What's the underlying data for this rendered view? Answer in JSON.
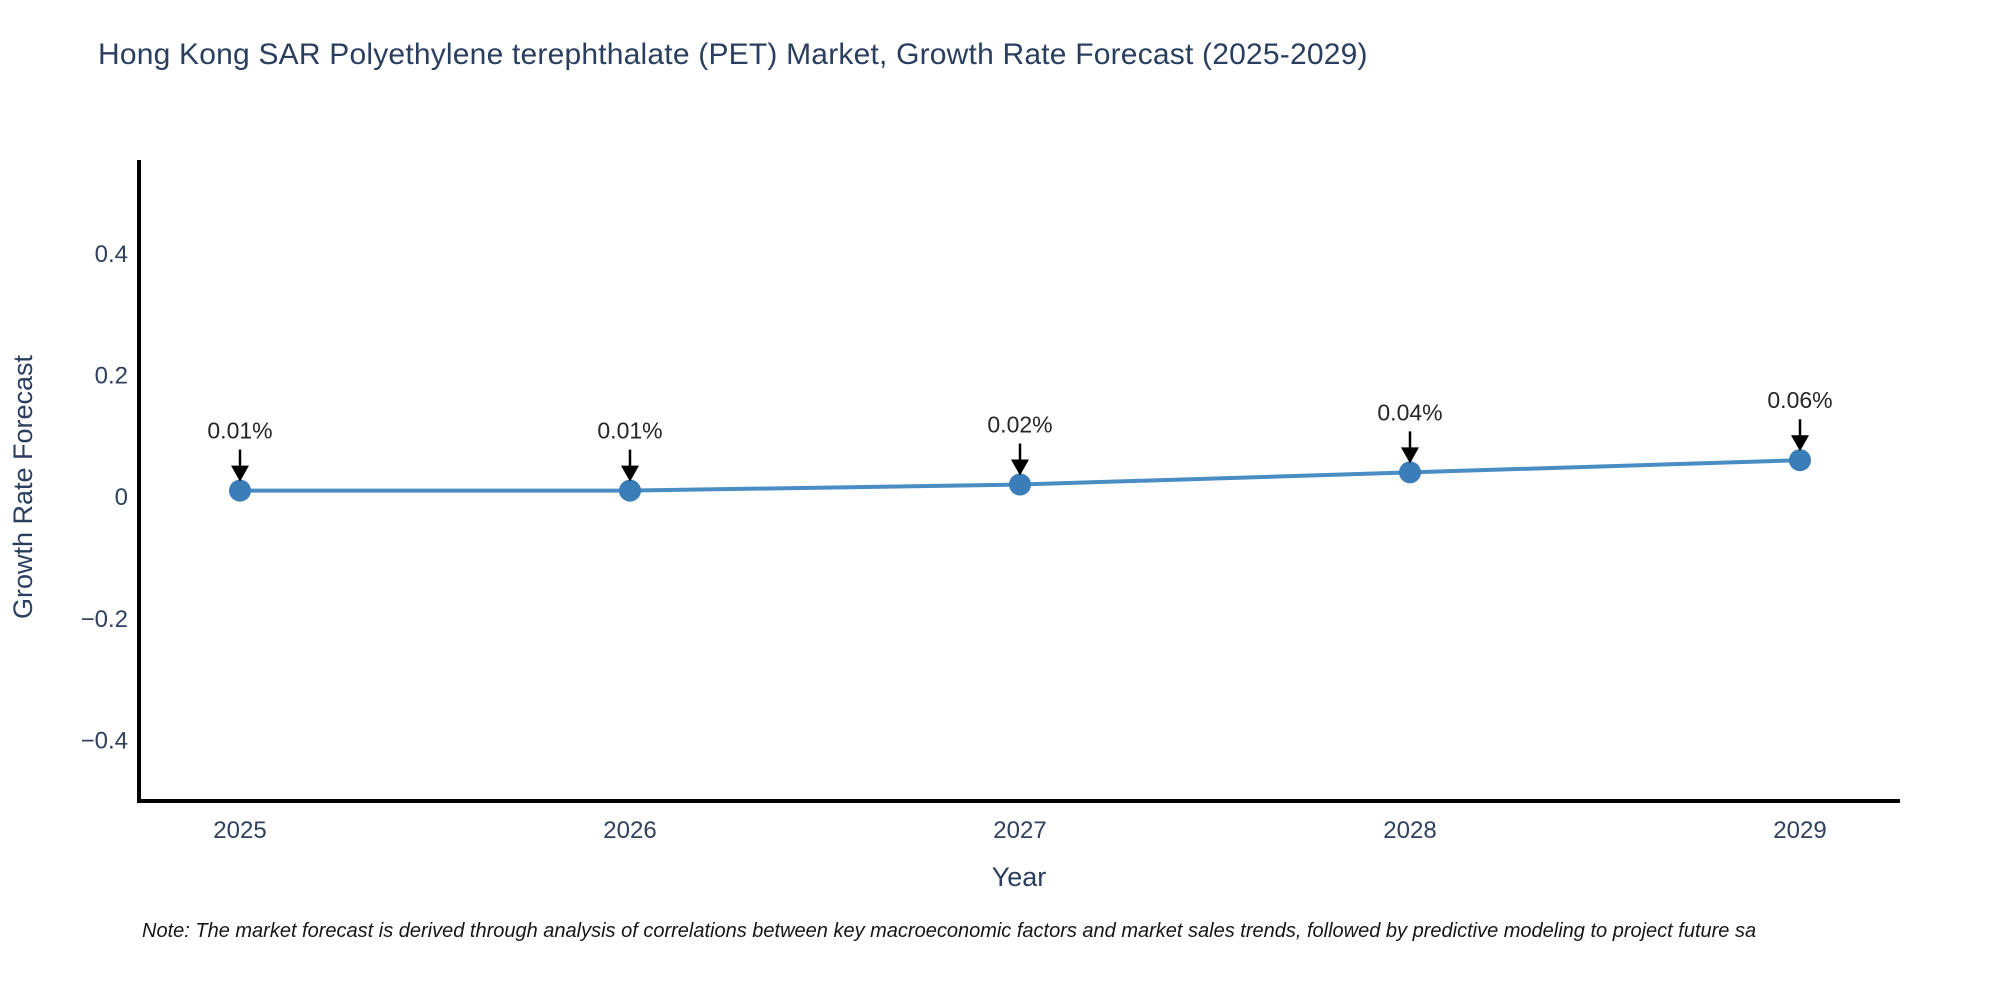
{
  "page": {
    "title": "Hong Kong SAR Polyethylene terephthalate (PET) Market, Growth Rate Forecast (2025-2029)",
    "note": "Note: The market forecast is derived through analysis of correlations between key macroeconomic factors and market sales trends, followed by predictive modeling to project future sa"
  },
  "chart_data": {
    "type": "line",
    "title": "Hong Kong SAR Polyethylene terephthalate (PET) Market, Growth Rate Forecast (2025-2029)",
    "xlabel": "Year",
    "ylabel": "Growth Rate Forecast",
    "x": [
      2025,
      2026,
      2027,
      2028,
      2029
    ],
    "xtick_labels": [
      "2025",
      "2026",
      "2027",
      "2028",
      "2029"
    ],
    "series": [
      {
        "name": "Growth Rate Forecast",
        "values": [
          0.01,
          0.01,
          0.02,
          0.04,
          0.06
        ]
      }
    ],
    "point_labels": [
      "0.01%",
      "0.01%",
      "0.02%",
      "0.04%",
      "0.06%"
    ],
    "yticks": [
      0.4,
      0.2,
      0,
      -0.2,
      -0.4
    ],
    "ytick_labels": [
      "0.4",
      "0.2",
      "0",
      "−0.2",
      "−0.4"
    ],
    "ylim": [
      -0.5,
      0.55
    ],
    "grid": false,
    "legend_position": "none",
    "note": "Note: The market forecast is derived through analysis of correlations between key macroeconomic factors and market sales trends, followed by predictive modeling to project future sa",
    "colors": {
      "line": "#4a8cc4",
      "marker": "#3a7db8",
      "axis": "#000000",
      "chart_text": "#2a3f5f",
      "annotation": "#262626"
    }
  }
}
